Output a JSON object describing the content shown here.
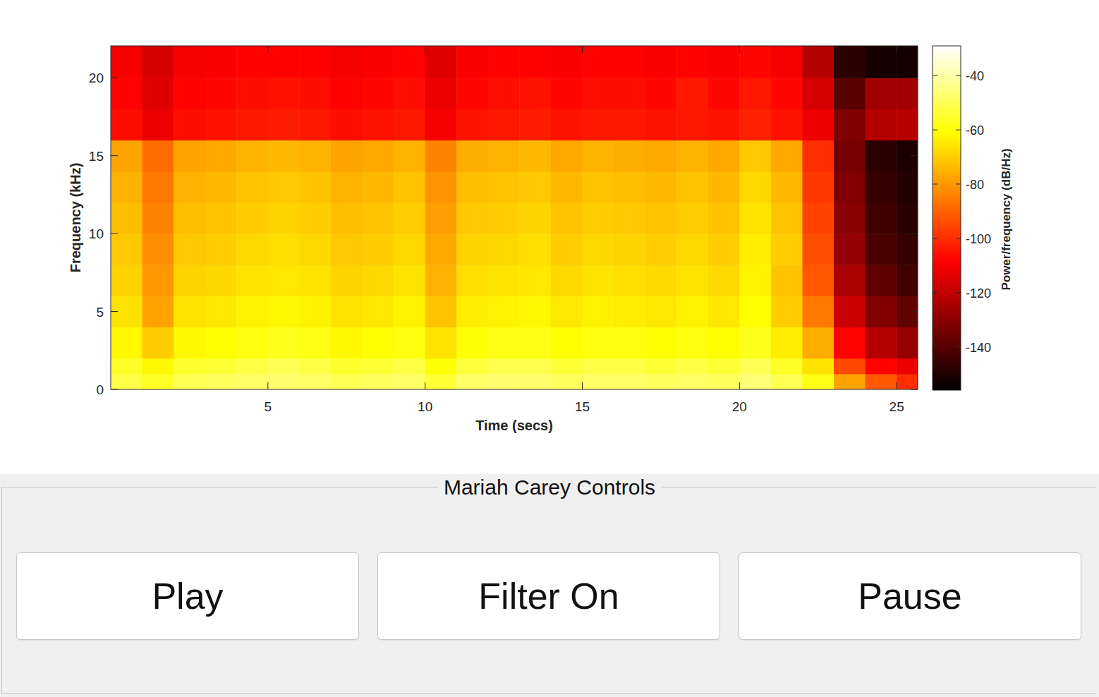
{
  "chart_data": {
    "type": "heatmap",
    "x_label": "Time (secs)",
    "y_label": "Frequency (kHz)",
    "x_edges": [
      0,
      1,
      2,
      3,
      4,
      5,
      6,
      7,
      8,
      9,
      10,
      11,
      12,
      13,
      14,
      15,
      16,
      17,
      18,
      19,
      20,
      21,
      22,
      23,
      24,
      25,
      25.67
    ],
    "y_edges": [
      0,
      1,
      2,
      4,
      6,
      8,
      10,
      12,
      14,
      16,
      18,
      20,
      22.05
    ],
    "z": [
      [
        -52,
        -56,
        -50,
        -49,
        -48,
        -47,
        -48,
        -50,
        -49,
        -48,
        -54,
        -48,
        -47,
        -47,
        -49,
        -48,
        -48,
        -49,
        -48,
        -49,
        -46,
        -50,
        -58,
        -78,
        -92,
        -100
      ],
      [
        -56,
        -62,
        -55,
        -54,
        -52,
        -50,
        -52,
        -55,
        -54,
        -52,
        -60,
        -53,
        -51,
        -51,
        -54,
        -52,
        -52,
        -54,
        -52,
        -54,
        -50,
        -56,
        -66,
        -95,
        -108,
        -112
      ],
      [
        -62,
        -70,
        -62,
        -61,
        -59,
        -57,
        -58,
        -62,
        -61,
        -59,
        -66,
        -60,
        -58,
        -58,
        -61,
        -59,
        -59,
        -61,
        -59,
        -61,
        -57,
        -64,
        -76,
        -108,
        -122,
        -128
      ],
      [
        -66,
        -78,
        -66,
        -65,
        -63,
        -62,
        -63,
        -66,
        -65,
        -63,
        -72,
        -64,
        -63,
        -62,
        -65,
        -63,
        -64,
        -65,
        -63,
        -65,
        -61,
        -70,
        -86,
        -118,
        -132,
        -138
      ],
      [
        -69,
        -80,
        -69,
        -68,
        -66,
        -65,
        -66,
        -69,
        -68,
        -66,
        -75,
        -67,
        -66,
        -65,
        -68,
        -66,
        -67,
        -68,
        -66,
        -68,
        -63,
        -72,
        -92,
        -124,
        -138,
        -144
      ],
      [
        -71,
        -82,
        -71,
        -70,
        -68,
        -67,
        -68,
        -71,
        -70,
        -68,
        -77,
        -69,
        -68,
        -67,
        -70,
        -68,
        -69,
        -70,
        -68,
        -70,
        -64,
        -70,
        -94,
        -128,
        -142,
        -146
      ],
      [
        -73,
        -84,
        -73,
        -72,
        -70,
        -69,
        -70,
        -73,
        -72,
        -70,
        -79,
        -71,
        -70,
        -69,
        -72,
        -70,
        -71,
        -72,
        -70,
        -72,
        -66,
        -72,
        -96,
        -130,
        -144,
        -148
      ],
      [
        -75,
        -86,
        -75,
        -74,
        -72,
        -71,
        -72,
        -75,
        -74,
        -72,
        -81,
        -73,
        -72,
        -71,
        -74,
        -72,
        -73,
        -74,
        -72,
        -74,
        -68,
        -74,
        -98,
        -132,
        -146,
        -150
      ],
      [
        -78,
        -88,
        -78,
        -77,
        -75,
        -74,
        -75,
        -78,
        -77,
        -75,
        -84,
        -76,
        -75,
        -74,
        -77,
        -75,
        -76,
        -77,
        -75,
        -77,
        -71,
        -77,
        -100,
        -134,
        -148,
        -151
      ],
      [
        -106,
        -112,
        -106,
        -105,
        -104,
        -103,
        -104,
        -106,
        -105,
        -104,
        -110,
        -105,
        -104,
        -103,
        -105,
        -104,
        -104,
        -105,
        -104,
        -105,
        -102,
        -105,
        -112,
        -132,
        -122,
        -122
      ],
      [
        -108,
        -114,
        -108,
        -107,
        -106,
        -105,
        -106,
        -108,
        -107,
        -106,
        -112,
        -107,
        -106,
        -105,
        -107,
        -106,
        -106,
        -107,
        -104,
        -107,
        -104,
        -107,
        -116,
        -140,
        -126,
        -126
      ],
      [
        -110,
        -116,
        -110,
        -109,
        -108,
        -108,
        -108,
        -110,
        -109,
        -108,
        -114,
        -109,
        -108,
        -108,
        -109,
        -108,
        -108,
        -109,
        -108,
        -109,
        -107,
        -110,
        -122,
        -148,
        -152,
        -152
      ]
    ],
    "xlim": [
      0,
      25.67
    ],
    "ylim": [
      0,
      22.05
    ],
    "xticks": [
      5,
      10,
      15,
      20,
      25
    ],
    "yticks": [
      0,
      5,
      10,
      15,
      20
    ],
    "colorbar": {
      "label": "Power/frequency (dB/Hz)",
      "range": [
        -156,
        -29
      ],
      "ticks": [
        -40,
        -60,
        -80,
        -100,
        -120,
        -140
      ]
    }
  },
  "controls": {
    "title": "Mariah Carey Controls",
    "buttons": [
      "Play",
      "Filter On",
      "Pause"
    ]
  }
}
